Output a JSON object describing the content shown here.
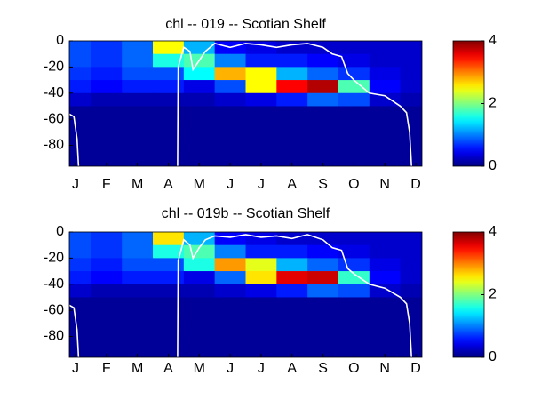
{
  "chart_data": [
    {
      "type": "heatmap",
      "title": "chl -- 019 -- Scotian Shelf",
      "colormap": "jet",
      "x": [
        1,
        2,
        3,
        4,
        5,
        6,
        7,
        8,
        9,
        10,
        11,
        12
      ],
      "y": [
        -5,
        -15,
        -25,
        -35,
        -45,
        -55,
        -65,
        -75,
        -85,
        -95
      ],
      "z": [
        [
          0.8,
          0.7,
          0.9,
          2.5,
          1.2,
          0.5,
          0.4,
          0.3,
          0.3,
          0.3,
          0.3,
          0.3
        ],
        [
          0.8,
          0.7,
          0.9,
          1.6,
          1.8,
          1.0,
          0.6,
          0.6,
          0.5,
          0.4,
          0.3,
          0.3
        ],
        [
          0.7,
          0.6,
          0.8,
          0.8,
          1.5,
          2.8,
          2.5,
          1.2,
          0.9,
          0.7,
          0.4,
          0.3
        ],
        [
          0.6,
          0.5,
          0.6,
          0.6,
          0.4,
          0.8,
          2.5,
          3.5,
          3.8,
          1.8,
          0.5,
          0.3
        ],
        [
          0.3,
          0.2,
          0.2,
          0.2,
          0.2,
          0.3,
          0.4,
          0.6,
          0.9,
          0.8,
          0.3,
          0.2
        ],
        [
          0.1,
          0.1,
          0.1,
          0.1,
          0.1,
          0.1,
          0.1,
          0.1,
          0.1,
          0.1,
          0.1,
          0.1
        ],
        [
          0.1,
          0.1,
          0.1,
          0.1,
          0.1,
          0.1,
          0.1,
          0.1,
          0.1,
          0.1,
          0.1,
          0.1
        ],
        [
          0.1,
          0.1,
          0.1,
          0.1,
          0.1,
          0.1,
          0.1,
          0.1,
          0.1,
          0.1,
          0.1,
          0.1
        ],
        [
          0.1,
          0.1,
          0.1,
          0.1,
          0.1,
          0.1,
          0.1,
          0.1,
          0.1,
          0.1,
          0.1,
          0.1
        ],
        [
          0.1,
          0.1,
          0.1,
          0.1,
          0.1,
          0.1,
          0.1,
          0.1,
          0.1,
          0.1,
          0.1,
          0.1
        ]
      ],
      "xlim": [
        0.8,
        12.2
      ],
      "ylim": [
        -96,
        0
      ],
      "xticks": [
        {
          "value": 1,
          "label": "J"
        },
        {
          "value": 2,
          "label": "F"
        },
        {
          "value": 3,
          "label": "M"
        },
        {
          "value": 4,
          "label": "A"
        },
        {
          "value": 5,
          "label": "M"
        },
        {
          "value": 6,
          "label": "J"
        },
        {
          "value": 7,
          "label": "J"
        },
        {
          "value": 8,
          "label": "A"
        },
        {
          "value": 9,
          "label": "S"
        },
        {
          "value": 10,
          "label": "O"
        },
        {
          "value": 11,
          "label": "N"
        },
        {
          "value": 12,
          "label": "D"
        }
      ],
      "yticks": [
        -80,
        -60,
        -40,
        -20,
        0
      ],
      "clim": [
        0,
        4
      ],
      "cticks": [
        0,
        2,
        4
      ],
      "line": {
        "color": "#ffffff",
        "x": [
          0.8,
          0.95,
          1.05,
          1.1,
          null,
          4.3,
          4.32,
          4.5,
          4.7,
          4.8,
          5.0,
          5.2,
          5.5,
          6.0,
          6.5,
          7.0,
          7.5,
          8.0,
          8.5,
          9.0,
          9.3,
          9.6,
          9.8,
          10.0,
          10.5,
          11.0,
          11.5,
          11.7,
          11.8,
          11.86
        ],
        "values": [
          -56,
          -58,
          -75,
          -96,
          null,
          -96,
          -20,
          -5,
          -8,
          -22,
          -15,
          -8,
          -2,
          -5,
          -2,
          -3,
          -5,
          -3,
          -2,
          -5,
          -10,
          -12,
          -25,
          -30,
          -40,
          -42,
          -50,
          -55,
          -70,
          -96
        ]
      }
    },
    {
      "type": "heatmap",
      "title": "chl -- 019b -- Scotian Shelf",
      "colormap": "jet",
      "x": [
        1,
        2,
        3,
        4,
        5,
        6,
        7,
        8,
        9,
        10,
        11,
        12
      ],
      "y": [
        -5,
        -15,
        -25,
        -35,
        -45,
        -55,
        -65,
        -75,
        -85,
        -95
      ],
      "z": [
        [
          0.8,
          0.7,
          0.9,
          2.6,
          1.2,
          0.5,
          0.4,
          0.3,
          0.3,
          0.3,
          0.3,
          0.3
        ],
        [
          0.8,
          0.7,
          0.9,
          1.6,
          1.8,
          1.0,
          0.6,
          0.6,
          0.5,
          0.4,
          0.3,
          0.3
        ],
        [
          0.7,
          0.6,
          0.8,
          0.8,
          1.6,
          2.9,
          2.4,
          1.2,
          0.9,
          0.7,
          0.4,
          0.3
        ],
        [
          0.6,
          0.5,
          0.6,
          0.6,
          0.4,
          0.9,
          2.6,
          3.6,
          3.7,
          1.7,
          0.5,
          0.3
        ],
        [
          0.3,
          0.2,
          0.2,
          0.2,
          0.2,
          0.3,
          0.4,
          0.6,
          0.9,
          0.8,
          0.3,
          0.2
        ],
        [
          0.1,
          0.1,
          0.1,
          0.1,
          0.1,
          0.1,
          0.1,
          0.1,
          0.1,
          0.1,
          0.1,
          0.1
        ],
        [
          0.1,
          0.1,
          0.1,
          0.1,
          0.1,
          0.1,
          0.1,
          0.1,
          0.1,
          0.1,
          0.1,
          0.1
        ],
        [
          0.1,
          0.1,
          0.1,
          0.1,
          0.1,
          0.1,
          0.1,
          0.1,
          0.1,
          0.1,
          0.1,
          0.1
        ],
        [
          0.1,
          0.1,
          0.1,
          0.1,
          0.1,
          0.1,
          0.1,
          0.1,
          0.1,
          0.1,
          0.1,
          0.1
        ],
        [
          0.1,
          0.1,
          0.1,
          0.1,
          0.1,
          0.1,
          0.1,
          0.1,
          0.1,
          0.1,
          0.1,
          0.1
        ]
      ],
      "xlim": [
        0.8,
        12.2
      ],
      "ylim": [
        -96,
        0
      ],
      "xticks": [
        {
          "value": 1,
          "label": "J"
        },
        {
          "value": 2,
          "label": "F"
        },
        {
          "value": 3,
          "label": "M"
        },
        {
          "value": 4,
          "label": "A"
        },
        {
          "value": 5,
          "label": "M"
        },
        {
          "value": 6,
          "label": "J"
        },
        {
          "value": 7,
          "label": "J"
        },
        {
          "value": 8,
          "label": "A"
        },
        {
          "value": 9,
          "label": "S"
        },
        {
          "value": 10,
          "label": "O"
        },
        {
          "value": 11,
          "label": "N"
        },
        {
          "value": 12,
          "label": "D"
        }
      ],
      "yticks": [
        -80,
        -60,
        -40,
        -20,
        0
      ],
      "clim": [
        0,
        4
      ],
      "cticks": [
        0,
        2,
        4
      ],
      "line": {
        "color": "#ffffff",
        "x": [
          0.8,
          0.95,
          1.05,
          1.1,
          null,
          4.3,
          4.32,
          4.5,
          4.7,
          4.8,
          5.0,
          5.2,
          5.5,
          6.0,
          6.5,
          7.0,
          7.5,
          8.0,
          8.5,
          9.0,
          9.3,
          9.6,
          9.8,
          10.0,
          10.5,
          11.0,
          11.5,
          11.7,
          11.8,
          11.86
        ],
        "values": [
          -56,
          -58,
          -75,
          -96,
          null,
          -96,
          -22,
          -6,
          -10,
          -20,
          -12,
          -6,
          -3,
          -4,
          -2,
          -4,
          -3,
          -5,
          -2,
          -6,
          -12,
          -14,
          -28,
          -32,
          -40,
          -43,
          -50,
          -55,
          -70,
          -96
        ]
      }
    }
  ]
}
